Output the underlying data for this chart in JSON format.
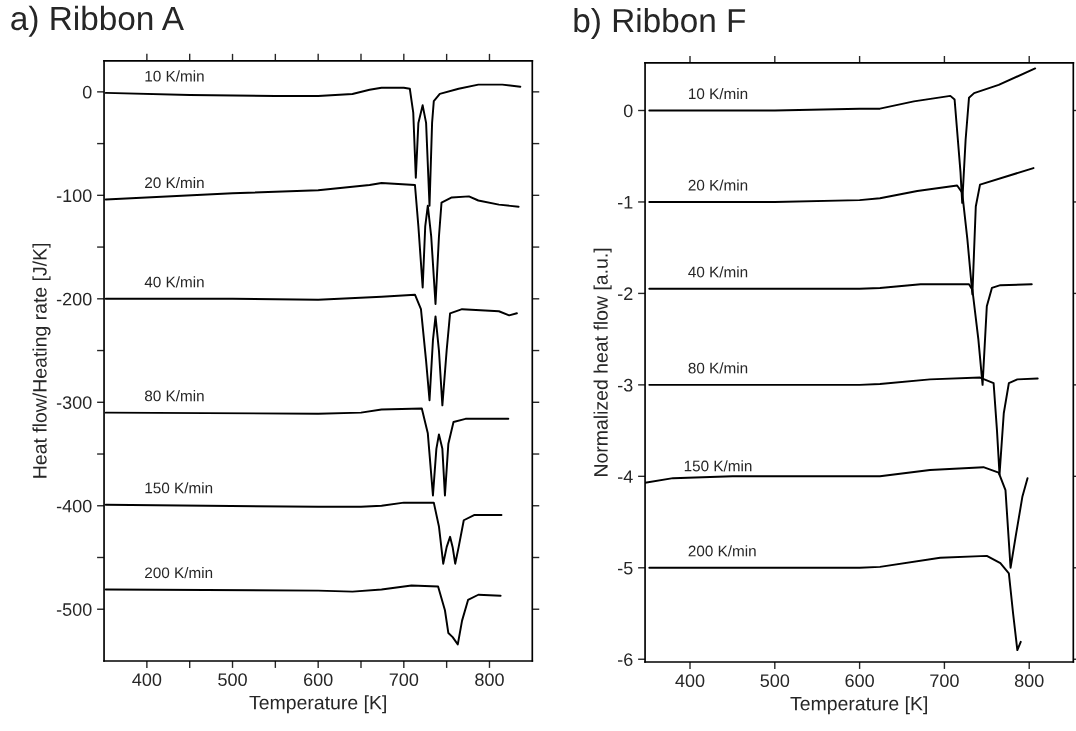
{
  "chart_data": [
    {
      "type": "line",
      "title": "a) Ribbon A",
      "xlabel": "Temperature [K]",
      "ylabel": "Heat flow/Heating rate [J/K]",
      "xlim": [
        350,
        850
      ],
      "ylim": [
        -550,
        30
      ],
      "xticks": [
        400,
        {
          "value": 450,
          "label": null
        },
        500,
        {
          "value": 550,
          "label": null
        },
        600,
        {
          "value": 650,
          "label": null
        },
        700,
        {
          "value": 750,
          "label": null
        },
        800
      ],
      "yticks": [
        0,
        {
          "value": -50,
          "label": null
        },
        -100,
        {
          "value": -150,
          "label": null
        },
        -200,
        {
          "value": -250,
          "label": null
        },
        -300,
        {
          "value": -350,
          "label": null
        },
        -400,
        {
          "value": -450,
          "label": null
        },
        -500
      ],
      "grid": false,
      "legend": false,
      "series": [
        {
          "name": "10 K/min",
          "color": "#000000",
          "x": [
            352,
            450,
            550,
            600,
            640,
            660,
            674,
            700,
            707,
            711,
            714,
            717,
            722,
            726,
            730,
            733,
            735,
            742,
            764,
            787,
            815,
            836
          ],
          "values": [
            -1,
            -3,
            -4,
            -4,
            -2,
            2,
            4,
            4,
            3,
            -20,
            -83,
            -30,
            -13,
            -30,
            -110,
            -30,
            -9,
            -2,
            3,
            7,
            7,
            5
          ]
        },
        {
          "name": "20 K/min",
          "color": "#000000",
          "x": [
            352,
            500,
            600,
            660,
            674,
            713,
            717,
            722,
            725,
            728,
            732,
            737,
            741,
            744,
            756,
            776,
            787,
            811,
            834
          ],
          "values": [
            -104,
            -98,
            -95,
            -90,
            -88,
            -90,
            -130,
            -189,
            -130,
            -110,
            -140,
            -205,
            -140,
            -107,
            -102,
            -101,
            -105,
            -109,
            -111
          ]
        },
        {
          "name": "40 K/min",
          "color": "#000000",
          "x": [
            352,
            500,
            600,
            674,
            713,
            720,
            726,
            730,
            734,
            737,
            741,
            745,
            750,
            754,
            768,
            811,
            823,
            832
          ],
          "values": [
            -200,
            -200,
            -201,
            -198,
            -196,
            -210,
            -260,
            -298,
            -240,
            -217,
            -250,
            -303,
            -250,
            -214,
            -210,
            -212,
            -216,
            -214
          ]
        },
        {
          "name": "80 K/min",
          "color": "#000000",
          "x": [
            352,
            600,
            650,
            674,
            721,
            728,
            734,
            738,
            741,
            745,
            748,
            752,
            758,
            772,
            822
          ],
          "values": [
            -310,
            -311,
            -310,
            -307,
            -306,
            -330,
            -390,
            -345,
            -331,
            -345,
            -390,
            -340,
            -319,
            -316,
            -316
          ]
        },
        {
          "name": "150 K/min",
          "color": "#000000",
          "x": [
            352,
            600,
            650,
            674,
            700,
            735,
            741,
            746,
            750,
            754,
            757,
            760,
            764,
            770,
            782,
            814
          ],
          "values": [
            -399,
            -401,
            -401,
            -400,
            -397,
            -397,
            -420,
            -456,
            -440,
            -430,
            -440,
            -456,
            -440,
            -414,
            -409,
            -409
          ]
        },
        {
          "name": "200 K/min",
          "color": "#000000",
          "x": [
            352,
            600,
            640,
            674,
            709,
            740,
            748,
            752,
            757,
            763,
            768,
            775,
            787,
            813
          ],
          "values": [
            -481,
            -482,
            -483,
            -481,
            -477,
            -478,
            -501,
            -523,
            -527,
            -534,
            -511,
            -491,
            -486,
            -487
          ]
        }
      ]
    },
    {
      "type": "line",
      "title": "b) Ribbon F",
      "xlabel": "Temperature [K]",
      "ylabel": "Normalized heat flow [a.u.]",
      "xlim": [
        347,
        852
      ],
      "ylim": [
        -6.03,
        0.52
      ],
      "xticks": [
        400,
        500,
        600,
        700,
        800
      ],
      "yticks": [
        0,
        -1,
        -2,
        -3,
        -4,
        -5,
        -6
      ],
      "grid": false,
      "legend": false,
      "series": [
        {
          "name": "10 K/min",
          "color": "#000000",
          "x": [
            352,
            500,
            600,
            624,
            664,
            707,
            712,
            719,
            721,
            725,
            729,
            735,
            764,
            807
          ],
          "values": [
            0,
            0,
            0.02,
            0.02,
            0.1,
            0.16,
            0.12,
            -0.68,
            -1.01,
            -0.32,
            0.14,
            0.19,
            0.28,
            0.46
          ]
        },
        {
          "name": "20 K/min",
          "color": "#000000",
          "x": [
            352,
            500,
            600,
            624,
            668,
            715,
            721,
            727,
            733,
            737,
            742,
            805
          ],
          "values": [
            -1,
            -1,
            -0.98,
            -0.96,
            -0.88,
            -0.82,
            -0.9,
            -1.4,
            -2.01,
            -1.05,
            -0.81,
            -0.63
          ]
        },
        {
          "name": "40 K/min",
          "color": "#000000",
          "x": [
            352,
            500,
            600,
            624,
            672,
            729,
            733,
            740,
            745,
            750,
            756,
            766,
            803
          ],
          "values": [
            -1.95,
            -1.95,
            -1.95,
            -1.94,
            -1.9,
            -1.9,
            -1.96,
            -2.5,
            -3.0,
            -2.14,
            -1.94,
            -1.91,
            -1.9
          ]
        },
        {
          "name": "80 K/min",
          "color": "#000000",
          "x": [
            352,
            600,
            624,
            683,
            742,
            758,
            762,
            765,
            770,
            776,
            786,
            810
          ],
          "values": [
            -3,
            -3,
            -2.99,
            -2.94,
            -2.92,
            -2.98,
            -3.5,
            -3.98,
            -3.31,
            -2.98,
            -2.94,
            -2.93
          ]
        },
        {
          "name": "150 K/min",
          "color": "#000000",
          "x": [
            347,
            380,
            450,
            600,
            624,
            683,
            746,
            764,
            772,
            778,
            784,
            792,
            798
          ],
          "values": [
            -4.07,
            -4.02,
            -4,
            -4,
            -4,
            -3.93,
            -3.9,
            -3.96,
            -4.15,
            -5.0,
            -4.66,
            -4.22,
            -4.02
          ]
        },
        {
          "name": "200 K/min",
          "color": "#000000",
          "x": [
            352,
            600,
            624,
            695,
            750,
            766,
            776,
            781,
            786,
            790
          ],
          "values": [
            -5,
            -5,
            -4.99,
            -4.89,
            -4.87,
            -4.95,
            -5.06,
            -5.5,
            -5.9,
            -5.81
          ]
        }
      ]
    }
  ]
}
